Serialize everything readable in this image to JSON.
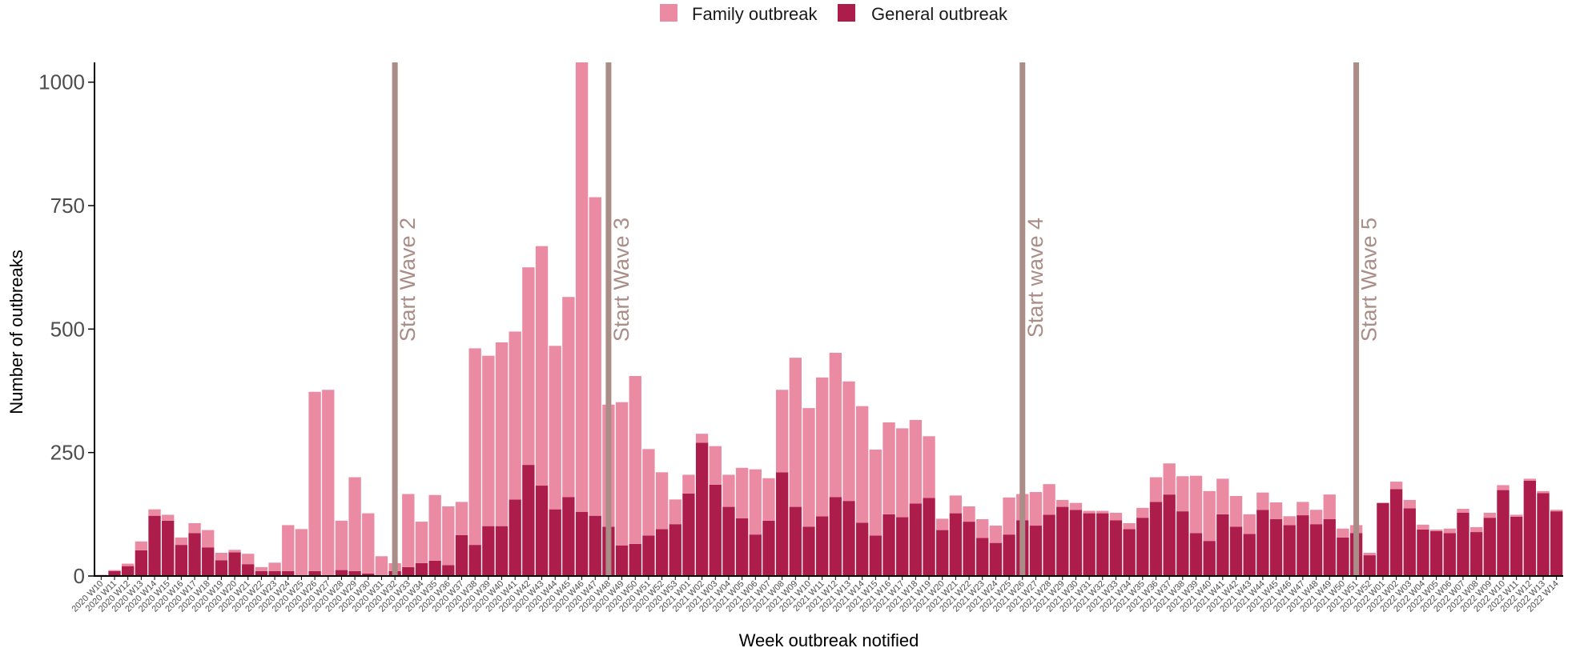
{
  "chart_data": {
    "type": "bar",
    "stacked": true,
    "title": "",
    "xlabel": "Week outbreak notified",
    "ylabel": "Number of outbreaks",
    "ylim": [
      0,
      1040
    ],
    "yticks": [
      0,
      250,
      500,
      750,
      1000
    ],
    "grid": false,
    "legend_position": "top",
    "colors": {
      "family": "#ea8aa3",
      "general": "#ad1d4c",
      "wave_line": "#a98d86",
      "axis": "#000000",
      "tick_text": "#4d4d4d"
    },
    "legend": [
      {
        "key": "family",
        "label": "Family outbreak"
      },
      {
        "key": "general",
        "label": "General outbreak"
      }
    ],
    "categories": [
      "2020 W10",
      "2020 W11",
      "2020 W12",
      "2020 W13",
      "2020 W14",
      "2020 W15",
      "2020 W16",
      "2020 W17",
      "2020 W18",
      "2020 W19",
      "2020 W20",
      "2020 W21",
      "2020 W22",
      "2020 W23",
      "2020 W24",
      "2020 W25",
      "2020 W26",
      "2020 W27",
      "2020 W28",
      "2020 W29",
      "2020 W30",
      "2020 W31",
      "2020 W32",
      "2020 W33",
      "2020 W34",
      "2020 W35",
      "2020 W36",
      "2020 W37",
      "2020 W38",
      "2020 W39",
      "2020 W40",
      "2020 W41",
      "2020 W42",
      "2020 W43",
      "2020 W44",
      "2020 W45",
      "2020 W46",
      "2020 W47",
      "2020 W48",
      "2020 W49",
      "2020 W50",
      "2020 W51",
      "2020 W52",
      "2020 W53",
      "2021 W01",
      "2021 W02",
      "2021 W03",
      "2021 W04",
      "2021 W05",
      "2021 W06",
      "2021 W07",
      "2021 W08",
      "2021 W09",
      "2021 W10",
      "2021 W11",
      "2021 W12",
      "2021 W13",
      "2021 W14",
      "2021 W15",
      "2021 W16",
      "2021 W17",
      "2021 W18",
      "2021 W19",
      "2021 W20",
      "2021 W21",
      "2021 W22",
      "2021 W23",
      "2021 W24",
      "2021 W25",
      "2021 W26",
      "2021 W27",
      "2021 W28",
      "2021 W29",
      "2021 W30",
      "2021 W31",
      "2021 W32",
      "2021 W33",
      "2021 W34",
      "2021 W35",
      "2021 W36",
      "2021 W37",
      "2021 W38",
      "2021 W39",
      "2021 W40",
      "2021 W41",
      "2021 W42",
      "2021 W43",
      "2021 W44",
      "2021 W45",
      "2021 W46",
      "2021 W47",
      "2021 W48",
      "2021 W49",
      "2021 W50",
      "2021 W51",
      "2021 W52",
      "2022 W01",
      "2022 W02",
      "2022 W03",
      "2022 W04",
      "2022 W05",
      "2022 W06",
      "2022 W07",
      "2022 W08",
      "2022 W09",
      "2022 W10",
      "2022 W11",
      "2022 W12",
      "2022 W13",
      "2022 W14"
    ],
    "series": [
      {
        "key": "general",
        "name": "General outbreak",
        "values": [
          2,
          10,
          20,
          52,
          122,
          112,
          63,
          87,
          58,
          32,
          48,
          24,
          10,
          10,
          10,
          0,
          10,
          0,
          12,
          10,
          5,
          0,
          10,
          18,
          26,
          31,
          22,
          83,
          63,
          101,
          101,
          155,
          225,
          183,
          135,
          160,
          130,
          122,
          100,
          62,
          65,
          82,
          95,
          105,
          167,
          270,
          185,
          140,
          117,
          84,
          112,
          210,
          140,
          100,
          121,
          160,
          152,
          108,
          82,
          125,
          119,
          147,
          158,
          93,
          127,
          110,
          77,
          67,
          84,
          113,
          102,
          124,
          140,
          134,
          127,
          127,
          113,
          95,
          118,
          150,
          165,
          131,
          87,
          71,
          125,
          100,
          85,
          134,
          115,
          103,
          123,
          105,
          115,
          78,
          87,
          42,
          148,
          176,
          137,
          94,
          91,
          87,
          128,
          89,
          118,
          174,
          120,
          193,
          168,
          131
        ]
      },
      {
        "key": "family",
        "name": "Family outbreak",
        "values": [
          0,
          2,
          5,
          18,
          13,
          12,
          15,
          20,
          35,
          15,
          5,
          21,
          8,
          17,
          93,
          95,
          363,
          377,
          100,
          190,
          122,
          40,
          16,
          148,
          84,
          133,
          119,
          67,
          398,
          345,
          372,
          340,
          400,
          485,
          331,
          405,
          910,
          645,
          247,
          290,
          340,
          175,
          115,
          50,
          38,
          18,
          78,
          65,
          102,
          132,
          86,
          167,
          302,
          240,
          281,
          292,
          242,
          236,
          174,
          186,
          180,
          169,
          125,
          23,
          36,
          31,
          38,
          35,
          75,
          53,
          68,
          62,
          14,
          14,
          5,
          5,
          15,
          12,
          20,
          50,
          63,
          71,
          116,
          101,
          72,
          62,
          40,
          35,
          34,
          18,
          27,
          29,
          50,
          18,
          16,
          5,
          0,
          15,
          17,
          10,
          3,
          9,
          8,
          10,
          10,
          10,
          4,
          4,
          4,
          3
        ]
      }
    ],
    "annotations": [
      {
        "label": "Start Wave 2",
        "at": "2020 W32"
      },
      {
        "label": "Start Wave 3",
        "at": "2020 W48"
      },
      {
        "label": "Start wave 4",
        "at": "2021 W26"
      },
      {
        "label": "Start Wave 5",
        "at": "2021 W51"
      }
    ]
  }
}
